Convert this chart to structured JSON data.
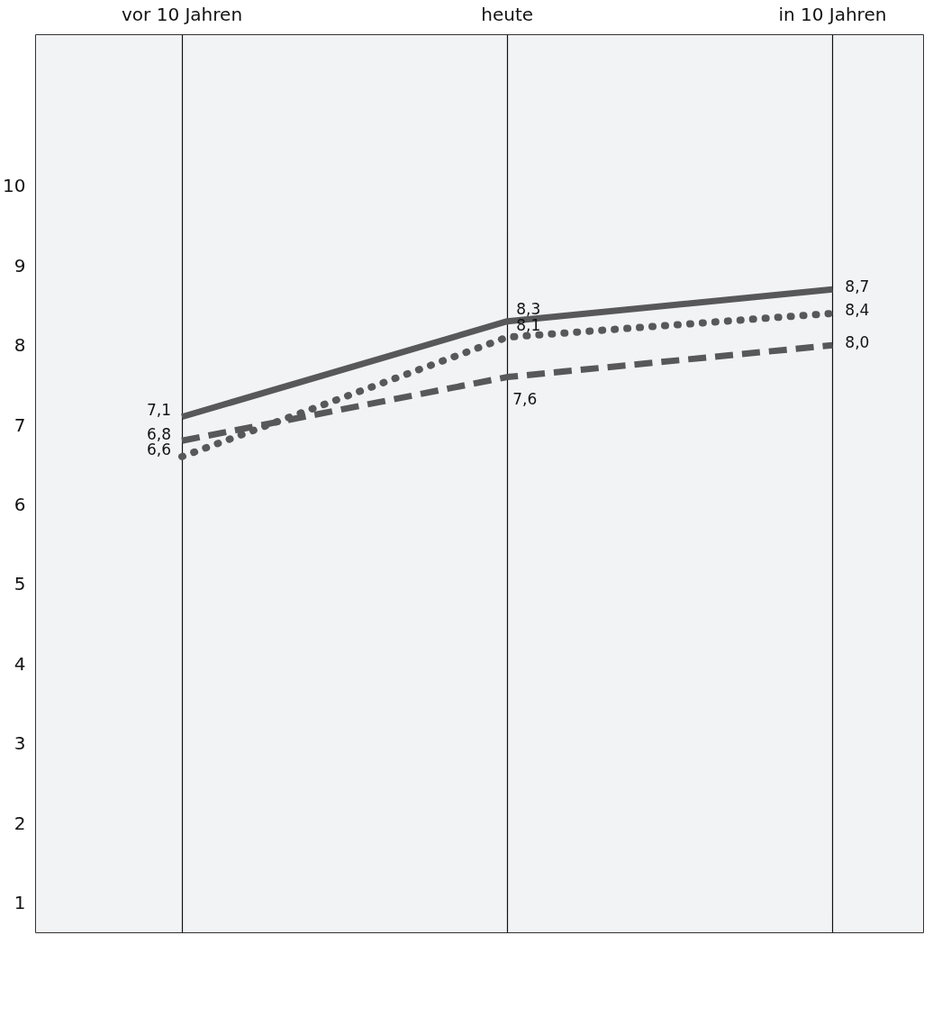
{
  "chart_data": {
    "type": "line",
    "categories": [
      "vor 10 Jahren",
      "heute",
      "in 10 Jahren"
    ],
    "ylim": [
      0.62,
      11.9
    ],
    "yticks": [
      1,
      2,
      3,
      4,
      5,
      6,
      7,
      8,
      9,
      10
    ],
    "grid": "x",
    "series": [
      {
        "color": "#58585a",
        "line_style": "solid",
        "values": [
          7.1,
          8.3,
          8.7
        ],
        "value_labels": [
          "7,1",
          "8,3",
          "8,7"
        ]
      },
      {
        "color": "#58585a",
        "line_style": "dashed",
        "values": [
          6.8,
          7.6,
          8.0
        ],
        "value_labels": [
          "6,8",
          "7,6",
          "8,0"
        ]
      },
      {
        "color": "#58585a",
        "line_style": "dotted",
        "values": [
          6.6,
          8.1,
          8.4
        ],
        "value_labels": [
          "6,6",
          "8,1",
          "8,4"
        ]
      }
    ]
  }
}
